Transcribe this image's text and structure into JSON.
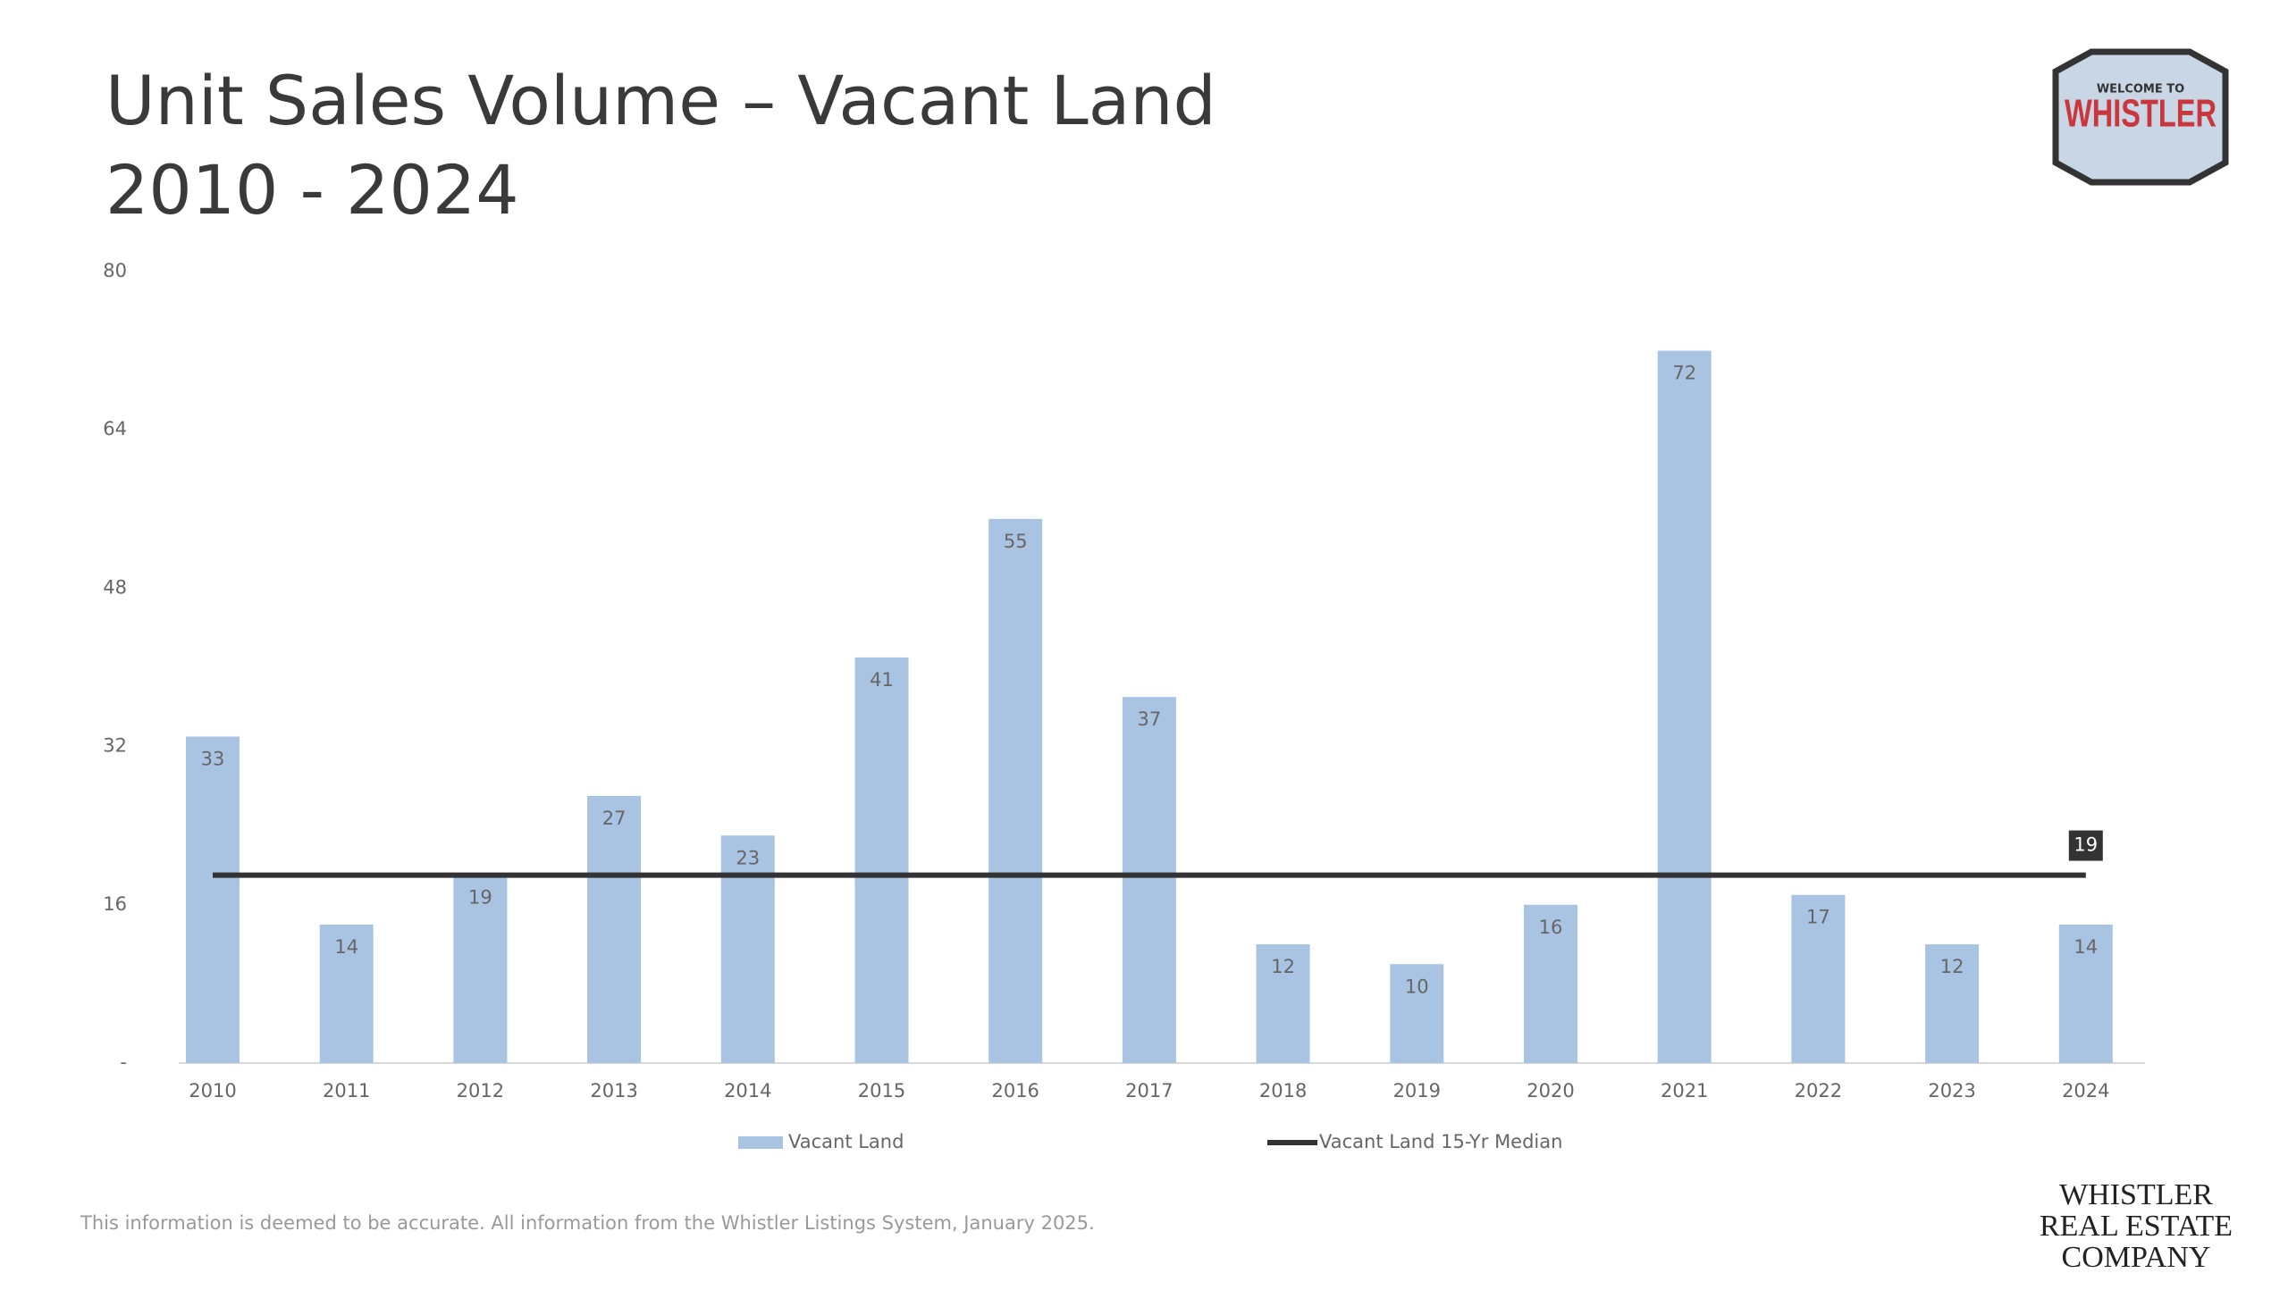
{
  "chart_data": {
    "type": "bar",
    "title": "Unit Sales Volume – Vacant Land",
    "subtitle": "2010 - 2024",
    "categories": [
      "2010",
      "2011",
      "2012",
      "2013",
      "2014",
      "2015",
      "2016",
      "2017",
      "2018",
      "2019",
      "2020",
      "2021",
      "2022",
      "2023",
      "2024"
    ],
    "series": [
      {
        "name": "Vacant Land",
        "color": "#a9c3e2",
        "values": [
          33,
          14,
          19,
          27,
          23,
          41,
          55,
          37,
          12,
          10,
          16,
          72,
          17,
          12,
          14
        ]
      }
    ],
    "median": {
      "name": "Vacant Land 15-Yr Median",
      "color": "#333333",
      "value": 19
    },
    "ylim": [
      0,
      80
    ],
    "yticks": [
      {
        "value": 0,
        "label": "-"
      },
      16,
      32,
      48,
      64,
      80
    ],
    "grid": false,
    "legend": "bottom"
  },
  "logo": {
    "top": "WELCOME TO",
    "name": "WHISTLER"
  },
  "company": [
    "WHISTLER",
    "REAL ESTATE",
    "COMPANY"
  ],
  "footnote": "This information is deemed to be accurate. All information from the Whistler Listings System, January 2025."
}
